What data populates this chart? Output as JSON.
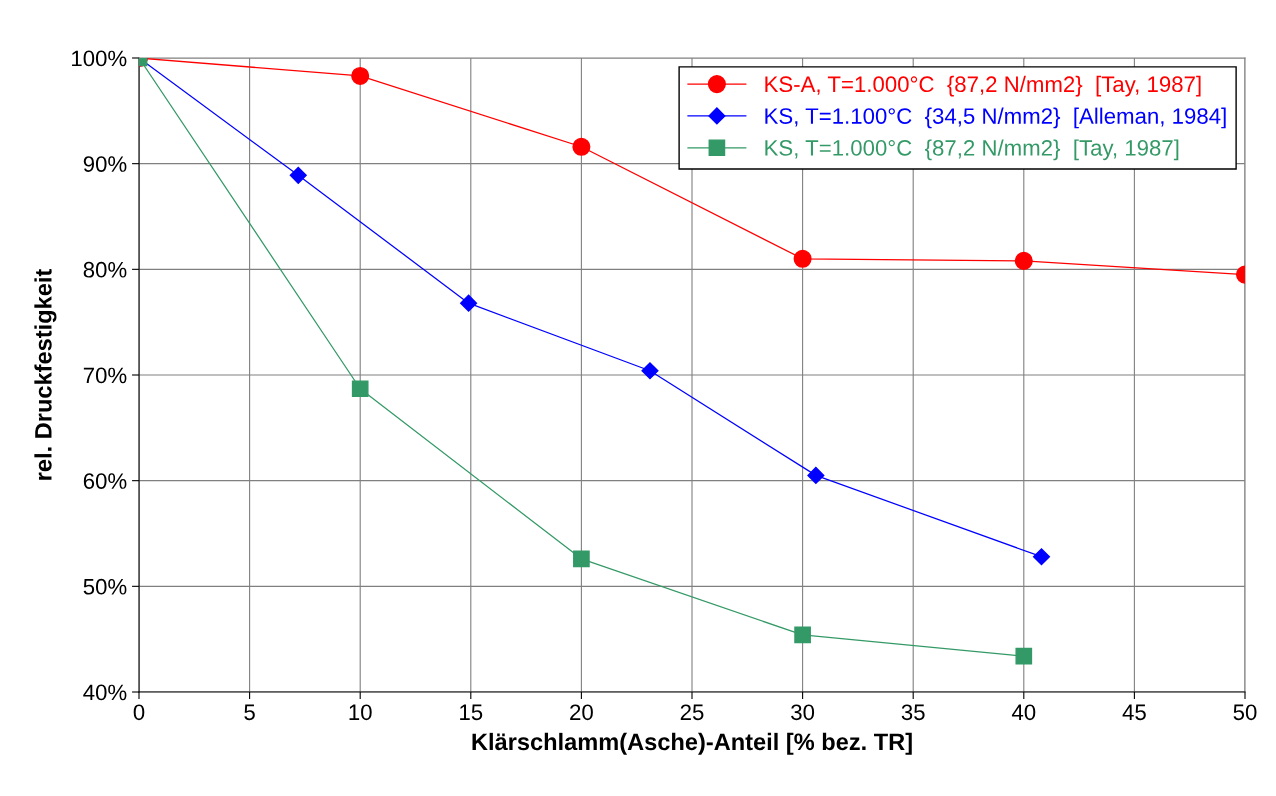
{
  "chart_data": {
    "type": "line",
    "xlabel": "Klärschlamm(Asche)-Anteil [% bez. TR]",
    "ylabel": "rel. Druckfestigkeit",
    "xlim": [
      0,
      50
    ],
    "xticks": [
      0,
      5,
      10,
      15,
      20,
      25,
      30,
      35,
      40,
      45,
      50
    ],
    "ylim": [
      40,
      100
    ],
    "yticks": [
      {
        "value": 40,
        "label": "40%"
      },
      {
        "value": 50,
        "label": "50%"
      },
      {
        "value": 60,
        "label": "60%"
      },
      {
        "value": 70,
        "label": "70%"
      },
      {
        "value": 80,
        "label": "80%"
      },
      {
        "value": 90,
        "label": "90%"
      },
      {
        "value": 100,
        "label": "100%"
      }
    ],
    "grid": true,
    "legend": "top right",
    "line_style": "solid",
    "series": [
      {
        "name": "KS-A, T=1.000°C  {87,2 N/mm2}  [Tay, 1987]",
        "color": "#ff0000",
        "marker": "circle",
        "x": [
          0,
          10,
          20,
          30,
          40,
          50
        ],
        "values": [
          100,
          98.3,
          91.6,
          81.0,
          80.8,
          79.5
        ]
      },
      {
        "name": "KS, T=1.100°C  {34,5 N/mm2}  [Alleman, 1984]",
        "color": "#0000ff",
        "marker": "diamond",
        "x": [
          0,
          7.2,
          14.9,
          23.1,
          30.6,
          40.8
        ],
        "values": [
          100,
          88.9,
          76.8,
          70.4,
          60.5,
          52.8
        ]
      },
      {
        "name": "KS, T=1.000°C  {87,2 N/mm2}  [Tay, 1987]",
        "color": "#339966",
        "marker": "square",
        "x": [
          0,
          10,
          20,
          30,
          40
        ],
        "values": [
          100,
          68.7,
          52.6,
          45.4,
          43.4
        ]
      }
    ]
  }
}
